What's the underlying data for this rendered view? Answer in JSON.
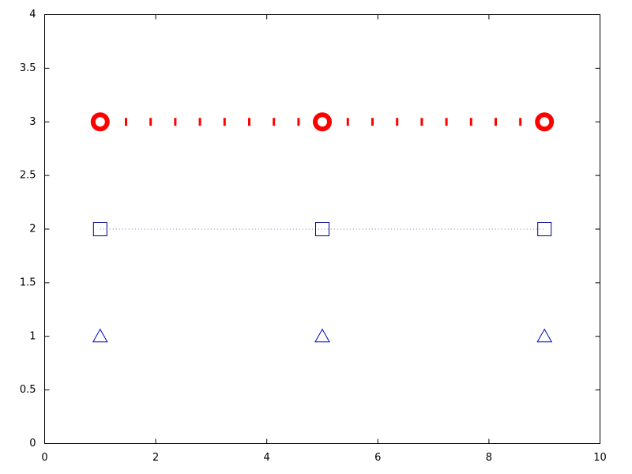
{
  "chart_data": {
    "type": "line",
    "x": [
      1,
      5,
      9
    ],
    "series": [
      {
        "color": "#ff0000",
        "marker": "circle",
        "line_style": "dotted-thick",
        "values": [
          3,
          3,
          3
        ]
      },
      {
        "color": "#00008b",
        "marker": "square",
        "line_style": "dotted-thin",
        "values": [
          2,
          2,
          2
        ]
      },
      {
        "color": "#0000cd",
        "marker": "triangle",
        "line_style": "none",
        "values": [
          1,
          1,
          1
        ]
      }
    ],
    "xlim": [
      0,
      10
    ],
    "xticks": [
      0,
      2,
      4,
      6,
      8,
      10
    ],
    "ylim": [
      0,
      4
    ],
    "yticks": [
      0,
      0.5,
      1,
      1.5,
      2,
      2.5,
      3,
      3.5,
      4
    ],
    "grid": false
  }
}
